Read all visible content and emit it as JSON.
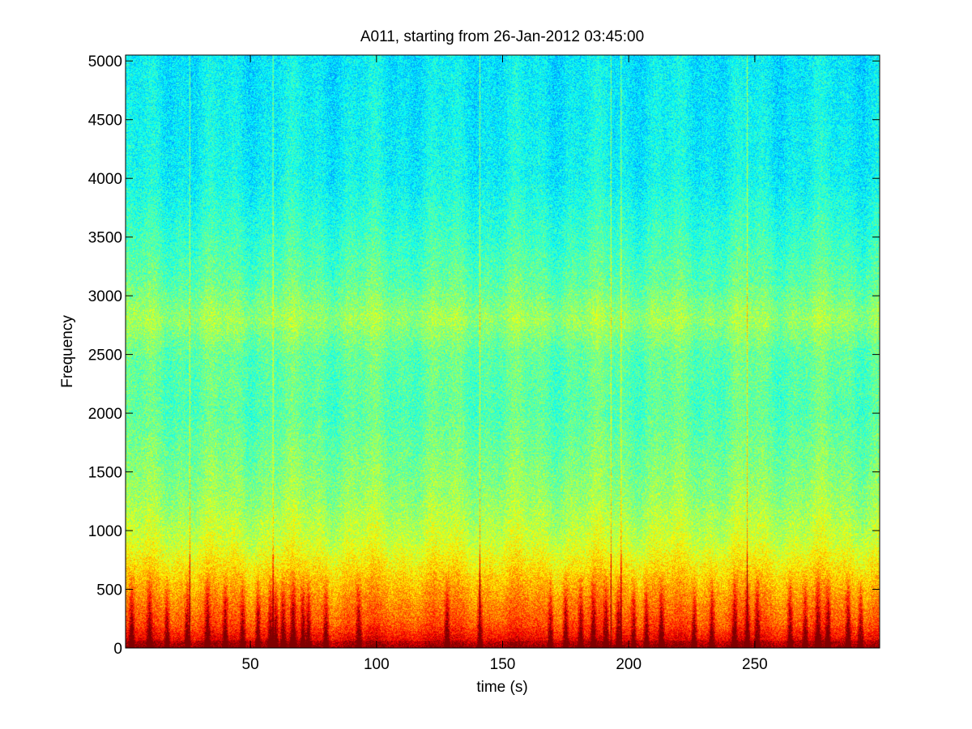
{
  "chart_data": {
    "type": "heatmap",
    "title": "A011, starting from 26-Jan-2012 03:45:00",
    "xlabel": "time (s)",
    "ylabel": "Frequency",
    "xlim": [
      0.5,
      299.5
    ],
    "ylim": [
      0,
      5050
    ],
    "x_ticks": [
      50,
      100,
      150,
      200,
      250
    ],
    "y_ticks": [
      0,
      500,
      1000,
      1500,
      2000,
      2500,
      3000,
      3500,
      4000,
      4500,
      5000
    ],
    "colormap": "jet",
    "grid": false,
    "legend": "none",
    "intensity_profile": {
      "description_units": "relative level 0-1 by frequency (Hz)",
      "frequency": [
        0,
        80,
        200,
        400,
        650,
        900,
        1300,
        2000,
        2500,
        2800,
        3100,
        3500,
        4000,
        5050
      ],
      "level": [
        0.95,
        0.88,
        0.8,
        0.74,
        0.66,
        0.58,
        0.52,
        0.46,
        0.47,
        0.53,
        0.47,
        0.43,
        0.38,
        0.36
      ]
    },
    "broadband_events_s": [
      26,
      59,
      141,
      193,
      197,
      247
    ],
    "low_frequency_bursts_s": [
      3,
      10,
      17,
      25,
      33,
      40,
      47,
      53,
      58,
      60,
      63,
      67,
      71,
      73,
      80,
      93,
      128,
      141,
      169,
      175,
      181,
      186,
      191,
      196,
      202,
      207,
      213,
      226,
      233,
      242,
      247,
      251,
      264,
      270,
      275,
      279,
      287,
      292
    ]
  }
}
